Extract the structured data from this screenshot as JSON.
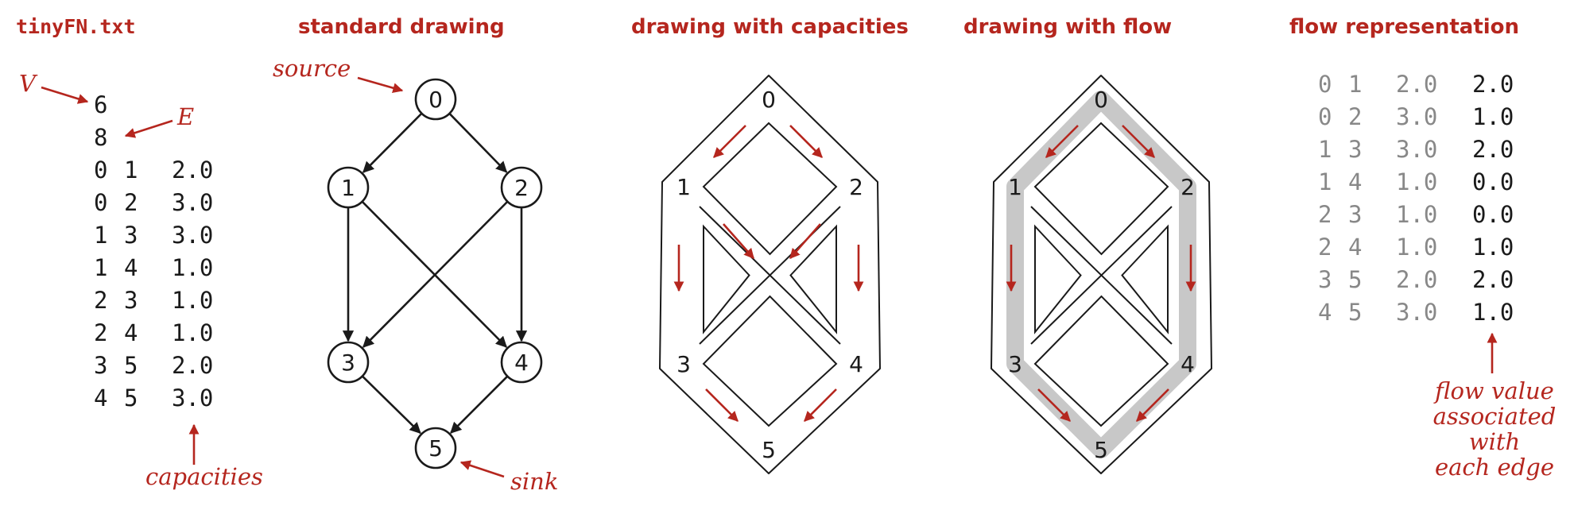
{
  "panels": {
    "file": {
      "title": "tinyFN.txt",
      "V": "6",
      "E": "8",
      "edges": [
        {
          "v": "0",
          "w": "1",
          "cap": "2.0"
        },
        {
          "v": "0",
          "w": "2",
          "cap": "3.0"
        },
        {
          "v": "1",
          "w": "3",
          "cap": "3.0"
        },
        {
          "v": "1",
          "w": "4",
          "cap": "1.0"
        },
        {
          "v": "2",
          "w": "3",
          "cap": "1.0"
        },
        {
          "v": "2",
          "w": "4",
          "cap": "1.0"
        },
        {
          "v": "3",
          "w": "5",
          "cap": "2.0"
        },
        {
          "v": "4",
          "w": "5",
          "cap": "3.0"
        }
      ],
      "labels": {
        "V": "V",
        "E": "E",
        "capacities": "capacities"
      }
    },
    "standard": {
      "title": "standard drawing",
      "source_label": "source",
      "sink_label": "sink"
    },
    "capacities": {
      "title": "drawing with capacities"
    },
    "flow": {
      "title": "drawing with flow"
    },
    "representation": {
      "title": "flow representation",
      "rows": [
        {
          "v": "0",
          "w": "1",
          "cap": "2.0",
          "flow": "2.0"
        },
        {
          "v": "0",
          "w": "2",
          "cap": "3.0",
          "flow": "1.0"
        },
        {
          "v": "1",
          "w": "3",
          "cap": "3.0",
          "flow": "2.0"
        },
        {
          "v": "1",
          "w": "4",
          "cap": "1.0",
          "flow": "0.0"
        },
        {
          "v": "2",
          "w": "3",
          "cap": "1.0",
          "flow": "0.0"
        },
        {
          "v": "2",
          "w": "4",
          "cap": "1.0",
          "flow": "1.0"
        },
        {
          "v": "3",
          "w": "5",
          "cap": "2.0",
          "flow": "2.0"
        },
        {
          "v": "4",
          "w": "5",
          "cap": "3.0",
          "flow": "1.0"
        }
      ],
      "annotation": [
        "flow value",
        "associated",
        "with",
        "each edge"
      ]
    }
  },
  "graph": {
    "vertices": [
      "0",
      "1",
      "2",
      "3",
      "4",
      "5"
    ],
    "edges": [
      [
        "0",
        "1"
      ],
      [
        "0",
        "2"
      ],
      [
        "1",
        "3"
      ],
      [
        "1",
        "4"
      ],
      [
        "2",
        "3"
      ],
      [
        "2",
        "4"
      ],
      [
        "3",
        "5"
      ],
      [
        "4",
        "5"
      ]
    ]
  },
  "colors": {
    "accent": "#b5261e",
    "text": "#1a1a1a",
    "muted": "#888888",
    "flow_fill": "#c8c8c8"
  }
}
